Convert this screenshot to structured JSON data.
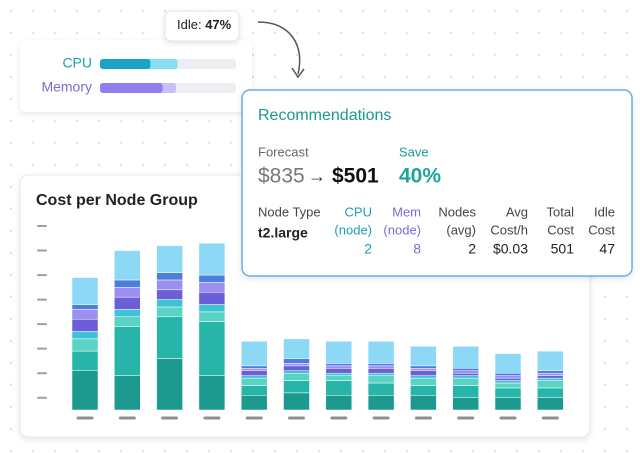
{
  "utilization": {
    "tooltip": {
      "label": "Idle:",
      "value": "47%"
    },
    "rows": [
      {
        "label": "CPU",
        "used": 37,
        "requested": 57,
        "color": "#1aa3c2",
        "light": "#86def0",
        "text_color": "#1a9fb0"
      },
      {
        "label": "Memory",
        "used": 46,
        "requested": 56,
        "color": "#8f7ef0",
        "light": "#c9bffa",
        "text_color": "#7b6bd6"
      }
    ],
    "max": 100
  },
  "recommendations": {
    "title": "Recommendations",
    "forecast_label": "Forecast",
    "forecast_from": "$835",
    "arrow": "→",
    "forecast_to": "$501",
    "save_label": "Save",
    "save_value": "40%",
    "table": {
      "headers": [
        [
          "Node Type"
        ],
        [
          "CPU",
          "(node)"
        ],
        [
          "Mem",
          "(node)"
        ],
        [
          "Nodes",
          "(avg)"
        ],
        [
          "Avg",
          "Cost/h"
        ],
        [
          "Total",
          "Cost"
        ],
        [
          "Idle",
          "Cost"
        ]
      ],
      "row": [
        "t2.large",
        2,
        8,
        2,
        "$0.03",
        501,
        47
      ]
    }
  },
  "chart_data": {
    "type": "stacked_bar",
    "title": "Cost per Node Group",
    "categories": [
      null,
      null,
      null,
      null,
      null,
      null,
      null,
      null,
      null,
      null,
      null,
      null
    ],
    "ylim": [
      0,
      7.5
    ],
    "yticks": [
      0.5,
      1.5,
      2.5,
      3.5,
      4.5,
      5.5,
      6.5,
      7.5
    ],
    "series": [
      {
        "color": "#1c9a8f",
        "values": [
          1.6,
          1.4,
          2.1,
          1.4,
          0.6,
          0.7,
          0.6,
          0.6,
          0.6,
          0.5,
          0.5,
          0.5
        ]
      },
      {
        "color": "#26b5a8",
        "values": [
          0.8,
          2.0,
          1.7,
          2.2,
          0.4,
          0.5,
          0.6,
          0.5,
          0.4,
          0.5,
          0.4,
          0.4
        ]
      },
      {
        "color": "#5ad3c5",
        "values": [
          0.5,
          0.4,
          0.4,
          0.4,
          0.3,
          0.3,
          0.2,
          0.3,
          0.3,
          0.3,
          0.2,
          0.3
        ]
      },
      {
        "color": "#3ec2d6",
        "values": [
          0.3,
          0.3,
          0.3,
          0.3,
          0.1,
          0.1,
          0.1,
          0.1,
          0.1,
          0.1,
          0.1,
          0.1
        ]
      },
      {
        "color": "#6a5fd8",
        "values": [
          0.5,
          0.5,
          0.4,
          0.5,
          0.2,
          0.2,
          0.2,
          0.2,
          0.2,
          0.1,
          0.1,
          0.1
        ]
      },
      {
        "color": "#9d8ff0",
        "values": [
          0.4,
          0.4,
          0.4,
          0.4,
          0.1,
          0.1,
          0.1,
          0.1,
          0.1,
          0.1,
          0.1,
          0.1
        ]
      },
      {
        "color": "#4a7fe0",
        "values": [
          0.2,
          0.3,
          0.3,
          0.3,
          0.1,
          0.2,
          0.1,
          0.1,
          0.1,
          0.1,
          0.1,
          0.1
        ]
      },
      {
        "color": "#8dd8f5",
        "values": [
          1.1,
          1.2,
          1.1,
          1.3,
          1.0,
          0.8,
          0.9,
          0.9,
          0.8,
          0.9,
          0.8,
          0.8
        ]
      }
    ]
  }
}
